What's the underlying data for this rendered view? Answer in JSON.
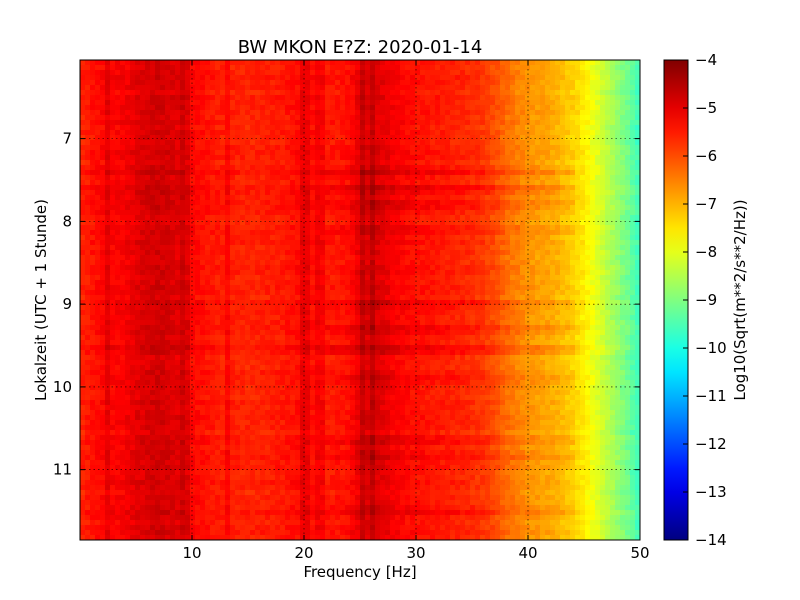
{
  "chart_data": {
    "type": "heatmap",
    "title": "BW MKON E?Z: 2020-01-14",
    "xlabel": "Frequency [Hz]",
    "ylabel": "Lokalzeit (UTC + 1 Stunde)",
    "x_range": [
      0,
      50
    ],
    "y_range": [
      6.05,
      11.85
    ],
    "y_inverted": true,
    "x_ticks": [
      10,
      20,
      30,
      40,
      50
    ],
    "x_tick_labels": [
      "10",
      "20",
      "30",
      "40",
      "50"
    ],
    "y_ticks": [
      7,
      8,
      9,
      10,
      11
    ],
    "y_tick_labels": [
      "7",
      "8",
      "9",
      "10",
      "11"
    ],
    "grid": true,
    "colormap": "jet",
    "colorbar": {
      "label": "Log10(Sqrt(m**2/s**2/Hz))",
      "range": [
        -14,
        -4
      ],
      "ticks": [
        -4,
        -5,
        -6,
        -7,
        -8,
        -9,
        -10,
        -11,
        -12,
        -13,
        -14
      ],
      "tick_labels": [
        "−4",
        "−5",
        "−6",
        "−7",
        "−8",
        "−9",
        "−10",
        "−11",
        "−12",
        "−13",
        "−14"
      ]
    },
    "spectrum_profile": {
      "frequency_hz": [
        0,
        2,
        4,
        5,
        7,
        9,
        10,
        12,
        15,
        18,
        20,
        22,
        24,
        25,
        26,
        27,
        28,
        30,
        32,
        34,
        36,
        37,
        38,
        39,
        40,
        41,
        42,
        43,
        44,
        45,
        46,
        47,
        48,
        49,
        50
      ],
      "level_log10": [
        -5.6,
        -5.3,
        -5.2,
        -5.0,
        -4.8,
        -5.0,
        -5.3,
        -5.5,
        -5.6,
        -5.5,
        -5.3,
        -5.5,
        -5.4,
        -5.0,
        -4.9,
        -5.0,
        -5.2,
        -5.4,
        -5.5,
        -5.6,
        -5.8,
        -6.0,
        -6.3,
        -6.5,
        -6.7,
        -6.8,
        -6.9,
        -7.1,
        -7.3,
        -7.6,
        -8.0,
        -8.4,
        -8.8,
        -9.2,
        -9.7
      ]
    },
    "vertical_lines_hz": [
      2.5,
      9.3,
      13.2,
      20.0,
      21.5,
      25.3,
      26.1
    ],
    "band_times_h": [
      7.4,
      7.6,
      7.8,
      8.1,
      9.0,
      9.3,
      9.55,
      9.9,
      10.65,
      10.85,
      11.5
    ],
    "band_strength": [
      0.35,
      0.45,
      0.4,
      0.3,
      0.35,
      0.4,
      0.45,
      0.3,
      0.35,
      0.3,
      0.3
    ]
  }
}
